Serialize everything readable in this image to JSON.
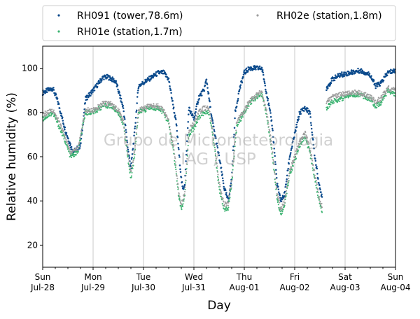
{
  "chart_data": {
    "type": "scatter",
    "xlabel": "Day",
    "ylabel": "Relative humidity (%)",
    "ylim": [
      10,
      110
    ],
    "yticks": [
      20,
      40,
      60,
      80,
      100
    ],
    "xlim": [
      "2019-07-28",
      "2019-08-04"
    ],
    "xticks": [
      {
        "day": "Sun",
        "date": "Jul-28"
      },
      {
        "day": "Mon",
        "date": "Jul-29"
      },
      {
        "day": "Tue",
        "date": "Jul-30"
      },
      {
        "day": "Wed",
        "date": "Jul-31"
      },
      {
        "day": "Thu",
        "date": "Aug-01"
      },
      {
        "day": "Fri",
        "date": "Aug-02"
      },
      {
        "day": "Sat",
        "date": "Aug-03"
      },
      {
        "day": "Sun",
        "date": "Aug-04"
      }
    ],
    "grid": "vertical",
    "legend_position": "top",
    "watermark": [
      "Grupo de Micrometeorologia",
      "IAG / USP"
    ],
    "series": [
      {
        "name": "RH091 (tower,78.6m)",
        "color": "#0b4a8c",
        "keypoints": [
          [
            0,
            89
          ],
          [
            0.2,
            91
          ],
          [
            0.3,
            85
          ],
          [
            0.45,
            72
          ],
          [
            0.6,
            62
          ],
          [
            0.75,
            65
          ],
          [
            0.85,
            86
          ],
          [
            1,
            90
          ],
          [
            1.2,
            96
          ],
          [
            1.3,
            96
          ],
          [
            1.45,
            94
          ],
          [
            1.6,
            82
          ],
          [
            1.7,
            62
          ],
          [
            1.75,
            55
          ],
          [
            1.82,
            70
          ],
          [
            1.9,
            92
          ],
          [
            2.1,
            95
          ],
          [
            2.3,
            98
          ],
          [
            2.4,
            98
          ],
          [
            2.5,
            95
          ],
          [
            2.65,
            75
          ],
          [
            2.75,
            50
          ],
          [
            2.78,
            45
          ],
          [
            2.82,
            48
          ],
          [
            2.9,
            82
          ],
          [
            3.0,
            77
          ],
          [
            3.1,
            87
          ],
          [
            3.2,
            90
          ],
          [
            3.25,
            95
          ],
          [
            3.35,
            78
          ],
          [
            3.5,
            60
          ],
          [
            3.6,
            46
          ],
          [
            3.68,
            40
          ],
          [
            3.75,
            50
          ],
          [
            3.82,
            80
          ],
          [
            3.9,
            90
          ],
          [
            4.0,
            98
          ],
          [
            4.1,
            100
          ],
          [
            4.35,
            100
          ],
          [
            4.45,
            88
          ],
          [
            4.55,
            75
          ],
          [
            4.6,
            62
          ],
          [
            4.65,
            48
          ],
          [
            4.72,
            40
          ],
          [
            4.8,
            43
          ],
          [
            4.9,
            60
          ],
          [
            5.0,
            70
          ],
          [
            5.1,
            80
          ],
          [
            5.2,
            82
          ],
          [
            5.3,
            80
          ],
          [
            5.4,
            60
          ],
          [
            5.5,
            45
          ],
          [
            5.55,
            42
          ],
          [
            5.57,
            null
          ],
          [
            5.6,
            null
          ],
          [
            5.63,
            91
          ],
          [
            5.75,
            95
          ],
          [
            5.9,
            97
          ],
          [
            6.1,
            98
          ],
          [
            6.3,
            99
          ],
          [
            6.5,
            97
          ],
          [
            6.6,
            92
          ],
          [
            6.7,
            93
          ],
          [
            6.85,
            98
          ],
          [
            7,
            99
          ]
        ]
      },
      {
        "name": "RH01e (station,1.7m)",
        "color": "#3cb371",
        "keypoints": [
          [
            0,
            77
          ],
          [
            0.2,
            80
          ],
          [
            0.3,
            75
          ],
          [
            0.45,
            67
          ],
          [
            0.55,
            60
          ],
          [
            0.7,
            62
          ],
          [
            0.85,
            80
          ],
          [
            1,
            80
          ],
          [
            1.2,
            83
          ],
          [
            1.35,
            83
          ],
          [
            1.5,
            80
          ],
          [
            1.6,
            75
          ],
          [
            1.7,
            58
          ],
          [
            1.75,
            50
          ],
          [
            1.82,
            60
          ],
          [
            1.9,
            80
          ],
          [
            2.1,
            82
          ],
          [
            2.3,
            82
          ],
          [
            2.4,
            80
          ],
          [
            2.5,
            75
          ],
          [
            2.6,
            62
          ],
          [
            2.7,
            42
          ],
          [
            2.75,
            36
          ],
          [
            2.82,
            42
          ],
          [
            2.9,
            70
          ],
          [
            3.0,
            73
          ],
          [
            3.1,
            78
          ],
          [
            3.2,
            80
          ],
          [
            3.3,
            80
          ],
          [
            3.4,
            66
          ],
          [
            3.5,
            46
          ],
          [
            3.6,
            36
          ],
          [
            3.68,
            37
          ],
          [
            3.75,
            48
          ],
          [
            3.85,
            74
          ],
          [
            4.0,
            80
          ],
          [
            4.1,
            84
          ],
          [
            4.3,
            88
          ],
          [
            4.35,
            88
          ],
          [
            4.45,
            78
          ],
          [
            4.55,
            62
          ],
          [
            4.65,
            42
          ],
          [
            4.72,
            34
          ],
          [
            4.8,
            38
          ],
          [
            4.9,
            52
          ],
          [
            5.0,
            58
          ],
          [
            5.1,
            65
          ],
          [
            5.2,
            69
          ],
          [
            5.3,
            62
          ],
          [
            5.4,
            50
          ],
          [
            5.5,
            38
          ],
          [
            5.55,
            35
          ],
          [
            5.57,
            null
          ],
          [
            5.6,
            null
          ],
          [
            5.63,
            82
          ],
          [
            5.75,
            85
          ],
          [
            5.9,
            86
          ],
          [
            6.1,
            88
          ],
          [
            6.3,
            88
          ],
          [
            6.5,
            86
          ],
          [
            6.6,
            83
          ],
          [
            6.7,
            84
          ],
          [
            6.85,
            90
          ],
          [
            7,
            88
          ]
        ]
      },
      {
        "name": "RH02e (station,1.8m)",
        "color": "#9e9e9e",
        "keypoints": [
          [
            0,
            79
          ],
          [
            0.2,
            81
          ],
          [
            0.3,
            77
          ],
          [
            0.45,
            69
          ],
          [
            0.55,
            62
          ],
          [
            0.7,
            64
          ],
          [
            0.85,
            81
          ],
          [
            1,
            81
          ],
          [
            1.2,
            84
          ],
          [
            1.35,
            84
          ],
          [
            1.5,
            81
          ],
          [
            1.6,
            76
          ],
          [
            1.7,
            60
          ],
          [
            1.75,
            53
          ],
          [
            1.82,
            62
          ],
          [
            1.9,
            81
          ],
          [
            2.1,
            83
          ],
          [
            2.3,
            83
          ],
          [
            2.4,
            81
          ],
          [
            2.5,
            76
          ],
          [
            2.6,
            64
          ],
          [
            2.7,
            44
          ],
          [
            2.75,
            38
          ],
          [
            2.82,
            44
          ],
          [
            2.9,
            72
          ],
          [
            3.0,
            75
          ],
          [
            3.1,
            80
          ],
          [
            3.2,
            82
          ],
          [
            3.3,
            82
          ],
          [
            3.4,
            68
          ],
          [
            3.5,
            48
          ],
          [
            3.6,
            38
          ],
          [
            3.68,
            39
          ],
          [
            3.75,
            50
          ],
          [
            3.85,
            76
          ],
          [
            4.0,
            81
          ],
          [
            4.1,
            85
          ],
          [
            4.3,
            89
          ],
          [
            4.35,
            89
          ],
          [
            4.45,
            80
          ],
          [
            4.55,
            64
          ],
          [
            4.65,
            44
          ],
          [
            4.72,
            36
          ],
          [
            4.8,
            40
          ],
          [
            4.9,
            54
          ],
          [
            5.0,
            60
          ],
          [
            5.1,
            67
          ],
          [
            5.2,
            71
          ],
          [
            5.3,
            64
          ],
          [
            5.4,
            52
          ],
          [
            5.5,
            40
          ],
          [
            5.55,
            37
          ],
          [
            5.57,
            null
          ],
          [
            5.6,
            null
          ],
          [
            5.63,
            85
          ],
          [
            5.75,
            87
          ],
          [
            5.9,
            88
          ],
          [
            6.1,
            89
          ],
          [
            6.3,
            89
          ],
          [
            6.5,
            87
          ],
          [
            6.6,
            85
          ],
          [
            6.7,
            86
          ],
          [
            6.85,
            91
          ],
          [
            7,
            90
          ]
        ]
      }
    ]
  }
}
